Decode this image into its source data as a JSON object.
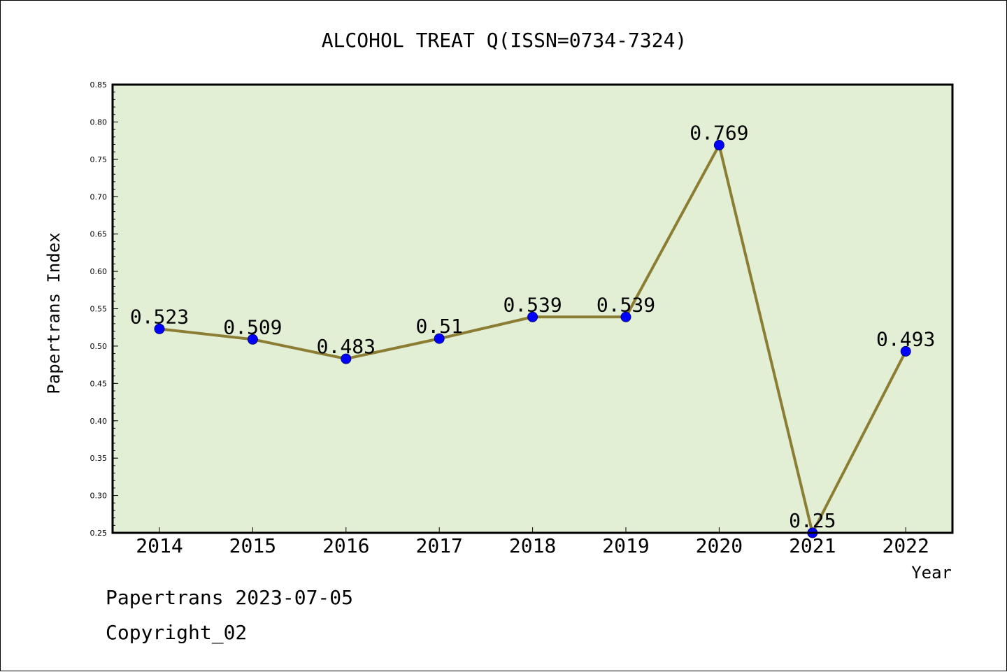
{
  "colors": {
    "plot_background": "#e2efd4",
    "line": "#8c7d34",
    "marker": "#0000ff",
    "marker_edge": "#000080",
    "axis": "#000000"
  },
  "footer": {
    "line1": "Papertrans 2023-07-05",
    "line2": "Copyright_02"
  },
  "chart_data": {
    "type": "line",
    "title": "ALCOHOL TREAT Q(ISSN=0734-7324)",
    "xlabel": "Year",
    "ylabel": "Papertrans Index",
    "categories": [
      "2014",
      "2015",
      "2016",
      "2017",
      "2018",
      "2019",
      "2020",
      "2021",
      "2022"
    ],
    "values": [
      0.523,
      0.509,
      0.483,
      0.51,
      0.539,
      0.539,
      0.769,
      0.25,
      0.493
    ],
    "data_labels": [
      "0.523",
      "0.509",
      "0.483",
      "0.51",
      "0.539",
      "0.539",
      "0.769",
      "0.25",
      "0.493"
    ],
    "ylim": [
      0.25,
      0.85
    ],
    "yticks": [
      "0.25",
      "0.30",
      "0.35",
      "0.40",
      "0.45",
      "0.50",
      "0.55",
      "0.60",
      "0.65",
      "0.70",
      "0.75",
      "0.80",
      "0.85"
    ],
    "grid": false,
    "legend": "none"
  }
}
